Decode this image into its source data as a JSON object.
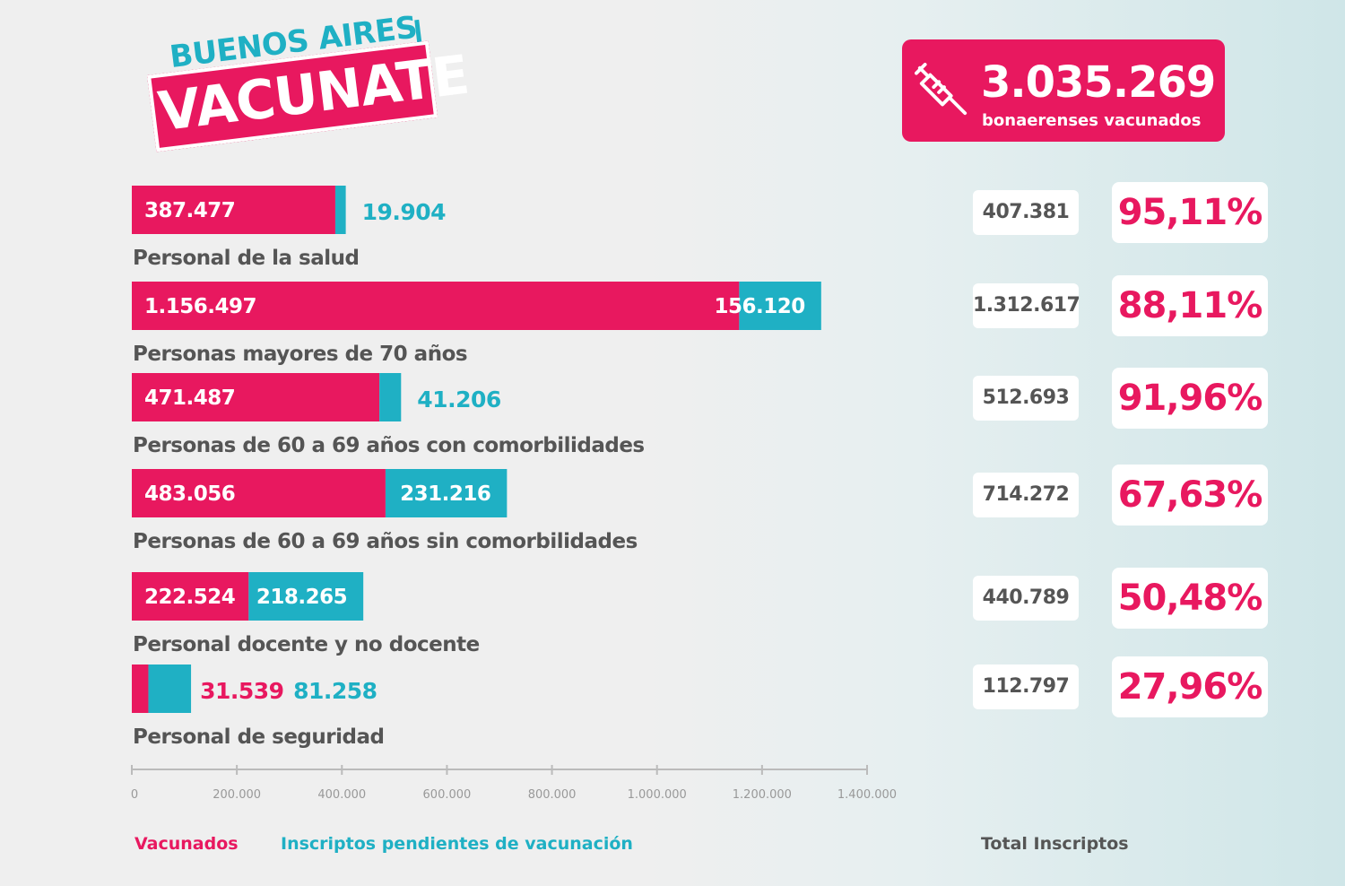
{
  "header": {
    "logo_top": "BUENOS AIRES",
    "logo_main": "VACUNATE"
  },
  "counter": {
    "icon": "syringe-icon",
    "value": "3.035.269",
    "label": "bonaerenses vacunados"
  },
  "colors": {
    "vaccinated": "#e8185f",
    "pending": "#1fb0c4",
    "label_text": "#555555",
    "axis": "#bbbbbb"
  },
  "chart_data": {
    "type": "bar",
    "orientation": "horizontal",
    "stacked": true,
    "categories": [
      "Personal de la salud",
      "Personas mayores de 70 años",
      "Personas de 60 a 69 años con comorbilidades",
      "Personas de 60 a 69 años sin comorbilidades",
      "Personal docente y no docente",
      "Personal de seguridad"
    ],
    "series": [
      {
        "name": "Vacunados",
        "values": [
          387477,
          1156497,
          471487,
          483056,
          222524,
          31539
        ],
        "labels": [
          "387.477",
          "1.156.497",
          "471.487",
          "483.056",
          "222.524",
          "31.539"
        ]
      },
      {
        "name": "Inscriptos pendientes  de vacunación",
        "values": [
          19904,
          156120,
          41206,
          231216,
          218265,
          81258
        ],
        "labels": [
          "19.904",
          "156.120",
          "41.206",
          "231.216",
          "218.265",
          "81.258"
        ]
      }
    ],
    "xlim": [
      0,
      1400000
    ],
    "xticks": [
      0,
      200000,
      400000,
      600000,
      800000,
      1000000,
      1200000,
      1400000
    ],
    "xtick_labels": [
      "0",
      "200.000",
      "400.000",
      "600.000",
      "800.000",
      "1.000.000",
      "1.200.000",
      "1.400.000"
    ]
  },
  "totals": {
    "header": "Total Inscriptos",
    "values": [
      "407.381",
      "1.312.617",
      "512.693",
      "714.272",
      "440.789",
      "112.797"
    ],
    "percentages": [
      "95,11%",
      "88,11%",
      "91,96%",
      "67,63%",
      "50,48%",
      "27,96%"
    ]
  }
}
